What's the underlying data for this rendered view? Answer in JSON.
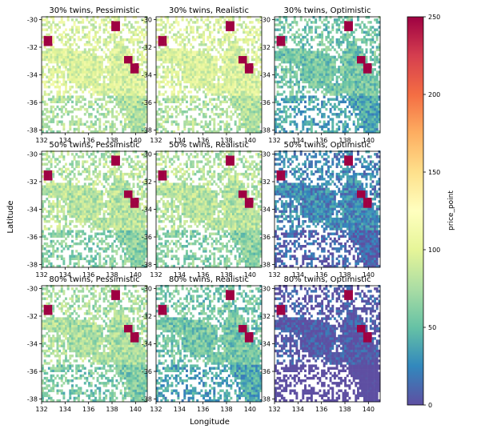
{
  "chart_data": {
    "type": "heatmap",
    "xlabel": "Longitude",
    "ylabel": "Latitude",
    "xlim": [
      132,
      141
    ],
    "ylim": [
      -38.2,
      -29.8
    ],
    "x_ticks": [
      132,
      134,
      136,
      138,
      140
    ],
    "y_ticks": [
      -30,
      -32,
      -34,
      -36,
      -38
    ],
    "colorbar": {
      "label": "price_point",
      "colormap": "Spectral_r",
      "range": [
        0,
        250
      ],
      "ticks": [
        0,
        50,
        100,
        150,
        200,
        250
      ]
    },
    "panels": [
      {
        "title": "30% twins, Pessimistic",
        "typical_price": 95
      },
      {
        "title": "30% twins, Realistic",
        "typical_price": 95
      },
      {
        "title": "30% twins, Optimistic",
        "typical_price": 55
      },
      {
        "title": "50% twins, Pessimistic",
        "typical_price": 80
      },
      {
        "title": "50% twins, Realistic",
        "typical_price": 80
      },
      {
        "title": "50% twins, Optimistic",
        "typical_price": 25
      },
      {
        "title": "80% twins, Pessimistic",
        "typical_price": 75
      },
      {
        "title": "80% twins, Realistic",
        "typical_price": 55
      },
      {
        "title": "80% twins, Optimistic",
        "typical_price": 2
      }
    ]
  }
}
